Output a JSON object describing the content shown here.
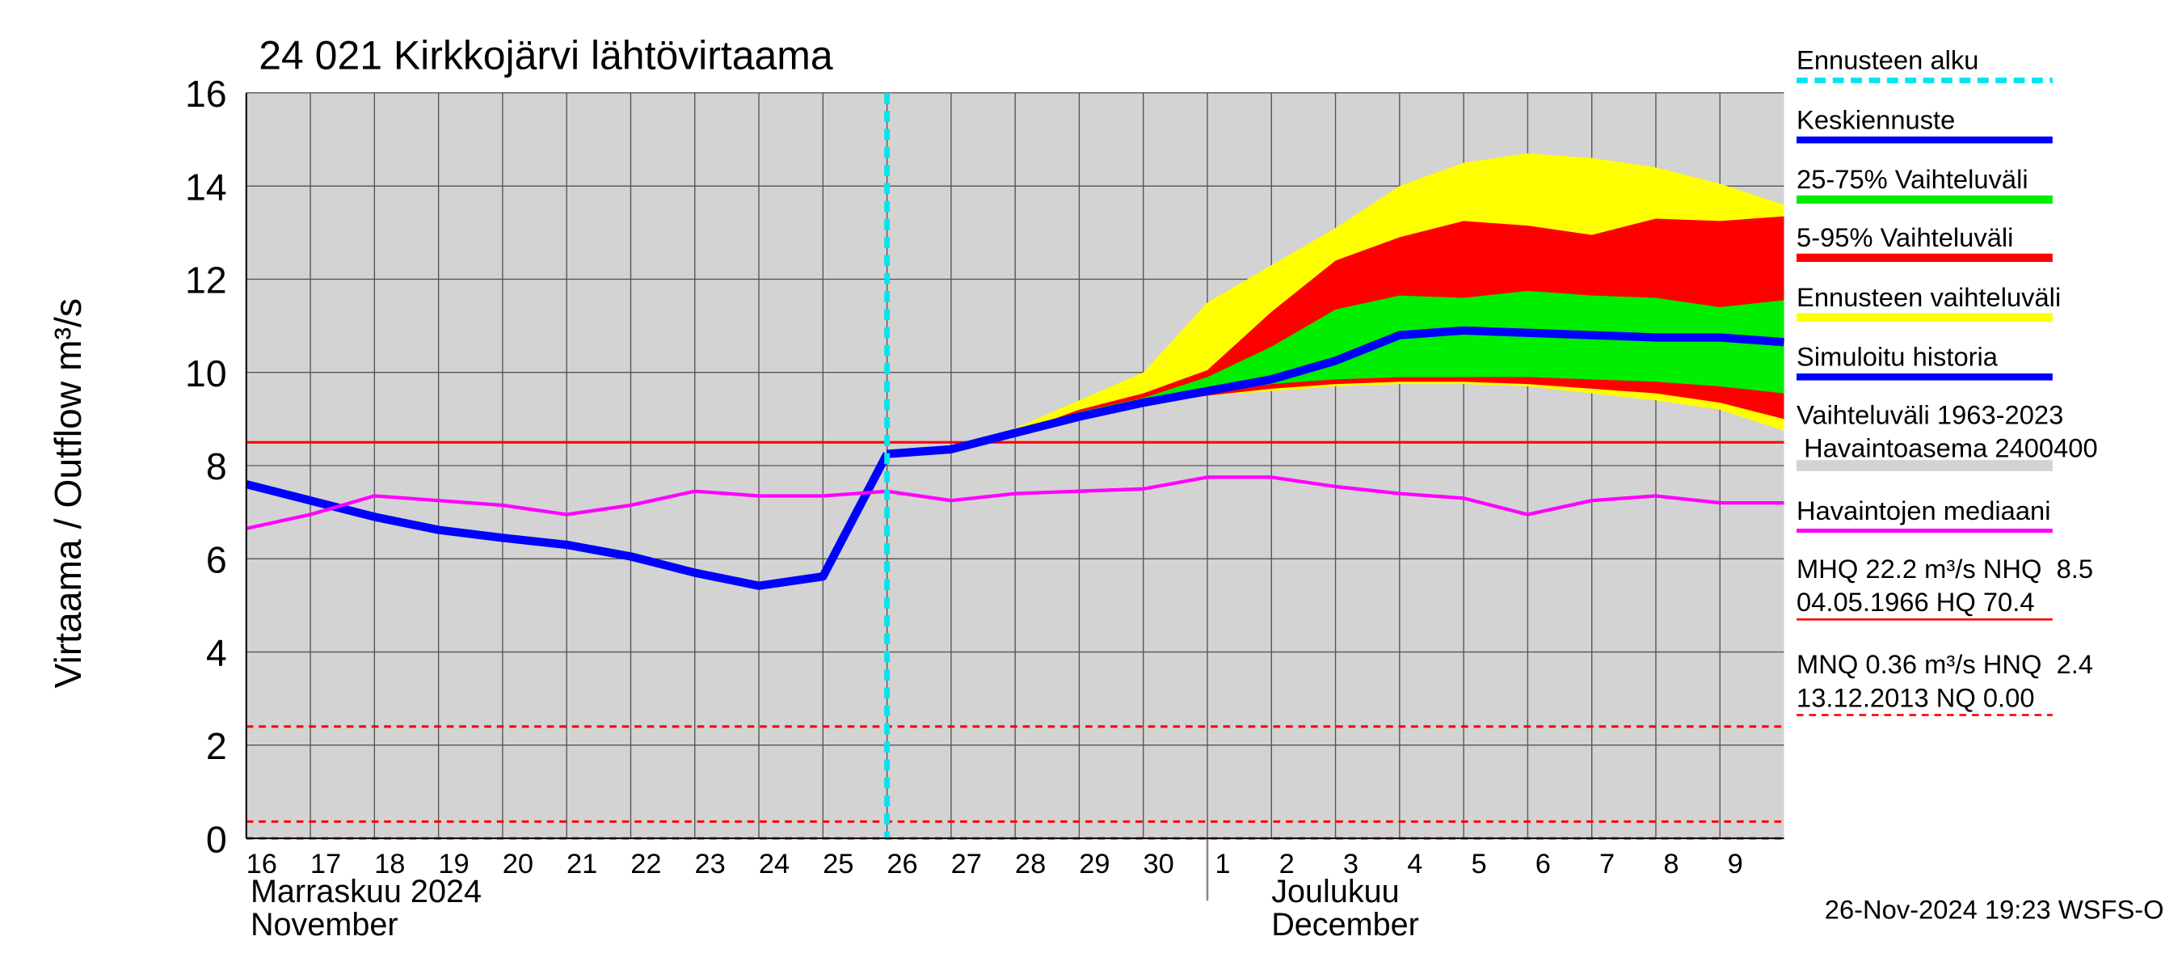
{
  "chart_data": {
    "type": "line",
    "title": "24 021 Kirkkojärvi lähtövirtaama",
    "y_label": "Virtaama / Outflow    m³/s",
    "footer": "26-Nov-2024 19:23 WSFS-O",
    "xlim": [
      0,
      24
    ],
    "ylim": [
      0,
      16
    ],
    "yticks": [
      0,
      2,
      4,
      6,
      8,
      10,
      12,
      14,
      16
    ],
    "xticks": [
      {
        "value": 0,
        "label": "16"
      },
      {
        "value": 1,
        "label": "17"
      },
      {
        "value": 2,
        "label": "18"
      },
      {
        "value": 3,
        "label": "19"
      },
      {
        "value": 4,
        "label": "20"
      },
      {
        "value": 5,
        "label": "21"
      },
      {
        "value": 6,
        "label": "22"
      },
      {
        "value": 7,
        "label": "23"
      },
      {
        "value": 8,
        "label": "24"
      },
      {
        "value": 9,
        "label": "25"
      },
      {
        "value": 10,
        "label": "26"
      },
      {
        "value": 11,
        "label": "27"
      },
      {
        "value": 12,
        "label": "28"
      },
      {
        "value": 13,
        "label": "29"
      },
      {
        "value": 14,
        "label": "30"
      },
      {
        "value": 15,
        "label": "1"
      },
      {
        "value": 16,
        "label": "2"
      },
      {
        "value": 17,
        "label": "3"
      },
      {
        "value": 18,
        "label": "4"
      },
      {
        "value": 19,
        "label": "5"
      },
      {
        "value": 20,
        "label": "6"
      },
      {
        "value": 21,
        "label": "7"
      },
      {
        "value": 22,
        "label": "8"
      },
      {
        "value": 23,
        "label": "9"
      }
    ],
    "months": [
      {
        "x": 0,
        "lines": [
          "Marraskuu 2024",
          "November"
        ]
      },
      {
        "x": 15,
        "lines": [
          "Joulukuu",
          "December"
        ]
      }
    ],
    "grid": true,
    "forecast_start": {
      "name": "Ennusteen alku",
      "x": 10,
      "color": "#00e5ee"
    },
    "history_range": {
      "name": "Vaihteluväli 1963-2023",
      "station": " Havaintoasema 2400400",
      "color": "#d3d3d3"
    },
    "series": [
      {
        "name": "Keskiennuste",
        "color": "#0000ff",
        "x": [
          10,
          11,
          12,
          13,
          14,
          15,
          16,
          17,
          18,
          19,
          20,
          21,
          22,
          23,
          24
        ],
        "values": [
          8.25,
          8.35,
          8.7,
          9.05,
          9.35,
          9.6,
          9.85,
          10.25,
          10.8,
          10.9,
          10.85,
          10.8,
          10.75,
          10.75,
          10.65
        ]
      },
      {
        "name": "Simuloitu historia",
        "color": "#0000ff",
        "x": [
          0,
          1,
          2,
          3,
          4,
          5,
          6,
          7,
          8,
          9,
          10
        ],
        "values": [
          7.6,
          7.25,
          6.9,
          6.62,
          6.45,
          6.3,
          6.05,
          5.7,
          5.42,
          5.62,
          8.25
        ]
      },
      {
        "name": "Havaintojen mediaani",
        "color": "#ff00ff",
        "x": [
          0,
          1,
          2,
          3,
          4,
          5,
          6,
          7,
          8,
          9,
          10,
          11,
          12,
          13,
          14,
          15,
          16,
          17,
          18,
          19,
          20,
          21,
          22,
          23,
          24
        ],
        "values": [
          6.65,
          6.95,
          7.35,
          7.25,
          7.15,
          6.95,
          7.15,
          7.45,
          7.35,
          7.35,
          7.45,
          7.25,
          7.4,
          7.45,
          7.5,
          7.75,
          7.75,
          7.55,
          7.4,
          7.3,
          6.95,
          7.25,
          7.35,
          7.2,
          7.2
        ]
      }
    ],
    "bands": [
      {
        "name": "Ennusteen vaihteluväli",
        "color": "#ffff00",
        "x": [
          10,
          11,
          12,
          13,
          14,
          15,
          16,
          17,
          18,
          19,
          20,
          21,
          22,
          23,
          24
        ],
        "high": [
          8.25,
          8.35,
          8.8,
          9.4,
          10.0,
          11.5,
          12.3,
          13.1,
          14.0,
          14.5,
          14.7,
          14.6,
          14.4,
          14.05,
          13.6
        ],
        "low": [
          8.25,
          8.35,
          8.65,
          9.0,
          9.3,
          9.5,
          9.6,
          9.7,
          9.75,
          9.75,
          9.7,
          9.55,
          9.4,
          9.2,
          8.75
        ]
      },
      {
        "name": "5-95% Vaihteluväli",
        "color": "#ff0000",
        "x": [
          10,
          11,
          12,
          13,
          14,
          15,
          16,
          17,
          18,
          19,
          20,
          21,
          22,
          23,
          24
        ],
        "high": [
          8.25,
          8.35,
          8.7,
          9.2,
          9.55,
          10.05,
          11.3,
          12.4,
          12.9,
          13.25,
          13.15,
          12.95,
          13.3,
          13.25,
          13.35
        ],
        "low": [
          8.25,
          8.35,
          8.65,
          9.0,
          9.3,
          9.5,
          9.65,
          9.75,
          9.8,
          9.8,
          9.75,
          9.65,
          9.55,
          9.35,
          9.0
        ]
      },
      {
        "name": "25-75% Vaihteluväli",
        "color": "#00ee00",
        "x": [
          10,
          11,
          12,
          13,
          14,
          15,
          16,
          17,
          18,
          19,
          20,
          21,
          22,
          23,
          24
        ],
        "high": [
          8.25,
          8.35,
          8.7,
          9.15,
          9.45,
          9.9,
          10.55,
          11.35,
          11.65,
          11.6,
          11.75,
          11.65,
          11.6,
          11.4,
          11.55
        ],
        "low": [
          8.25,
          8.35,
          8.65,
          9.05,
          9.3,
          9.55,
          9.75,
          9.85,
          9.9,
          9.9,
          9.9,
          9.85,
          9.8,
          9.7,
          9.55
        ]
      }
    ],
    "reference_lines": [
      {
        "lines": [
          "MHQ 22.2 m³/s NHQ  8.5",
          "04.05.1966 HQ 70.4"
        ],
        "values": [
          8.5
        ],
        "color": "#ff0000",
        "dashed": false
      },
      {
        "lines": [
          "MNQ 0.36 m³/s HNQ  2.4",
          "13.12.2013 NQ 0.00"
        ],
        "values": [
          2.4,
          0.36,
          0
        ],
        "color": "#ff0000",
        "dashed": true
      }
    ]
  }
}
